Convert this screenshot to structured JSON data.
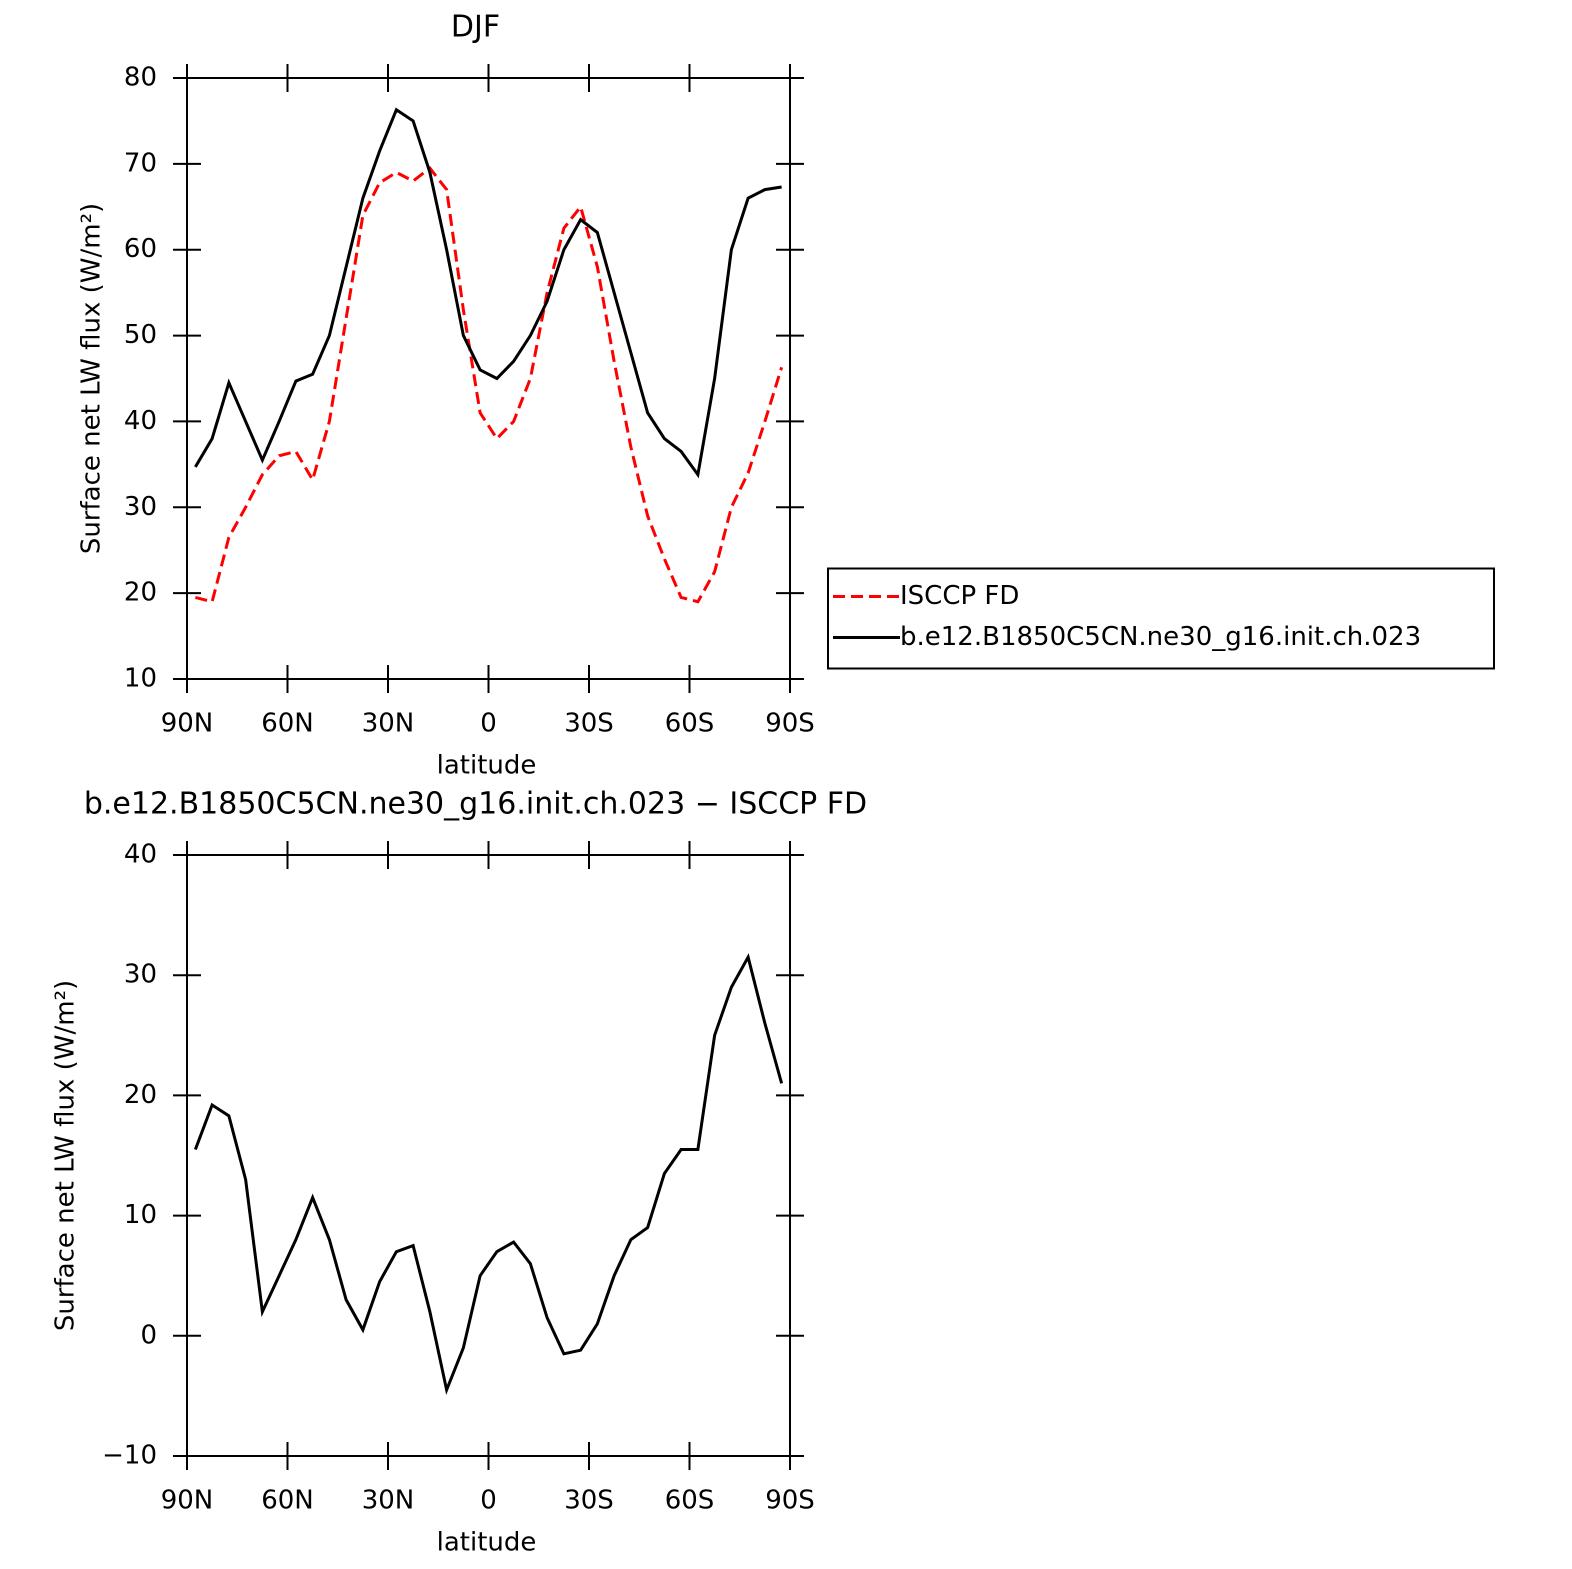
{
  "chart_data": [
    {
      "type": "line",
      "title": "DJF",
      "xlabel": "latitude",
      "ylabel": "Surface net LW flux (W/m²)",
      "x": [
        87.5,
        82.5,
        77.5,
        72.5,
        67.5,
        62.5,
        57.5,
        52.5,
        47.5,
        42.5,
        37.5,
        32.5,
        27.5,
        22.5,
        17.5,
        12.5,
        7.5,
        2.5,
        -2.5,
        -7.5,
        -12.5,
        -17.5,
        -22.5,
        -27.5,
        -32.5,
        -37.5,
        -42.5,
        -47.5,
        -52.5,
        -57.5,
        -62.5,
        -67.5,
        -72.5,
        -77.5,
        -82.5,
        -87.5
      ],
      "series": [
        {
          "name": "ISCCP FD",
          "color": "#ff0000",
          "style": "dashed",
          "values": [
            19.5,
            19,
            26.5,
            30,
            33.8,
            36,
            36.5,
            33.2,
            40,
            52,
            64,
            67.8,
            69,
            68,
            69.5,
            67,
            53,
            41,
            38,
            40,
            45,
            55,
            62.5,
            65,
            58,
            47,
            37,
            29,
            24,
            19.5,
            19,
            22.5,
            30,
            34,
            40,
            46.3
          ]
        },
        {
          "name": "b.e12.B1850C5CN.ne30_g16.init.ch.023",
          "color": "#000000",
          "style": "solid",
          "values": [
            34.7,
            38,
            44.5,
            40,
            35.5,
            40,
            44.7,
            45.5,
            50,
            58,
            66,
            71.5,
            76.3,
            75,
            69,
            60,
            50,
            46,
            45,
            47,
            50,
            54,
            60,
            63.5,
            62,
            55,
            48,
            41,
            38,
            36.5,
            33.8,
            45,
            60,
            66,
            67,
            67.3
          ]
        }
      ],
      "xlim": [
        90,
        -90
      ],
      "xticks": [
        {
          "value": 90,
          "label": "90N"
        },
        {
          "value": 60,
          "label": "60N"
        },
        {
          "value": 30,
          "label": "30N"
        },
        0,
        {
          "value": -30,
          "label": "30S"
        },
        {
          "value": -60,
          "label": "60S"
        },
        {
          "value": -90,
          "label": "90S"
        }
      ],
      "ylim": [
        10,
        80
      ],
      "yticks": [
        10,
        20,
        30,
        40,
        50,
        60,
        70,
        80
      ],
      "legend": "right"
    },
    {
      "type": "line",
      "title": "b.e12.B1850C5CN.ne30_g16.init.ch.023 − ISCCP FD",
      "xlabel": "latitude",
      "ylabel": "Surface net LW flux (W/m²)",
      "x": [
        87.5,
        82.5,
        77.5,
        72.5,
        67.5,
        62.5,
        57.5,
        52.5,
        47.5,
        42.5,
        37.5,
        32.5,
        27.5,
        22.5,
        17.5,
        12.5,
        7.5,
        2.5,
        -2.5,
        -7.5,
        -12.5,
        -17.5,
        -22.5,
        -27.5,
        -32.5,
        -37.5,
        -42.5,
        -47.5,
        -52.5,
        -57.5,
        -62.5,
        -67.5,
        -72.5,
        -77.5,
        -82.5,
        -87.5
      ],
      "series": [
        {
          "color": "#000000",
          "style": "solid",
          "values": [
            15.5,
            19.2,
            18.3,
            13,
            2,
            5,
            8,
            11.5,
            8,
            3,
            0.5,
            4.5,
            7,
            7.5,
            2,
            -4.5,
            -1,
            5,
            7,
            7.8,
            6,
            1.5,
            -1.5,
            -1.2,
            1,
            5,
            8,
            9,
            13.5,
            15.5,
            15.5,
            25,
            29,
            31.5,
            26,
            21
          ]
        }
      ],
      "xlim": [
        90,
        -90
      ],
      "xticks": [
        {
          "value": 90,
          "label": "90N"
        },
        {
          "value": 60,
          "label": "60N"
        },
        {
          "value": 30,
          "label": "30N"
        },
        0,
        {
          "value": -30,
          "label": "30S"
        },
        {
          "value": -60,
          "label": "60S"
        },
        {
          "value": -90,
          "label": "90S"
        }
      ],
      "ylim": [
        -10,
        40
      ],
      "yticks": [
        {
          "value": -10,
          "label": "−10"
        },
        0,
        10,
        20,
        30,
        40
      ]
    }
  ]
}
